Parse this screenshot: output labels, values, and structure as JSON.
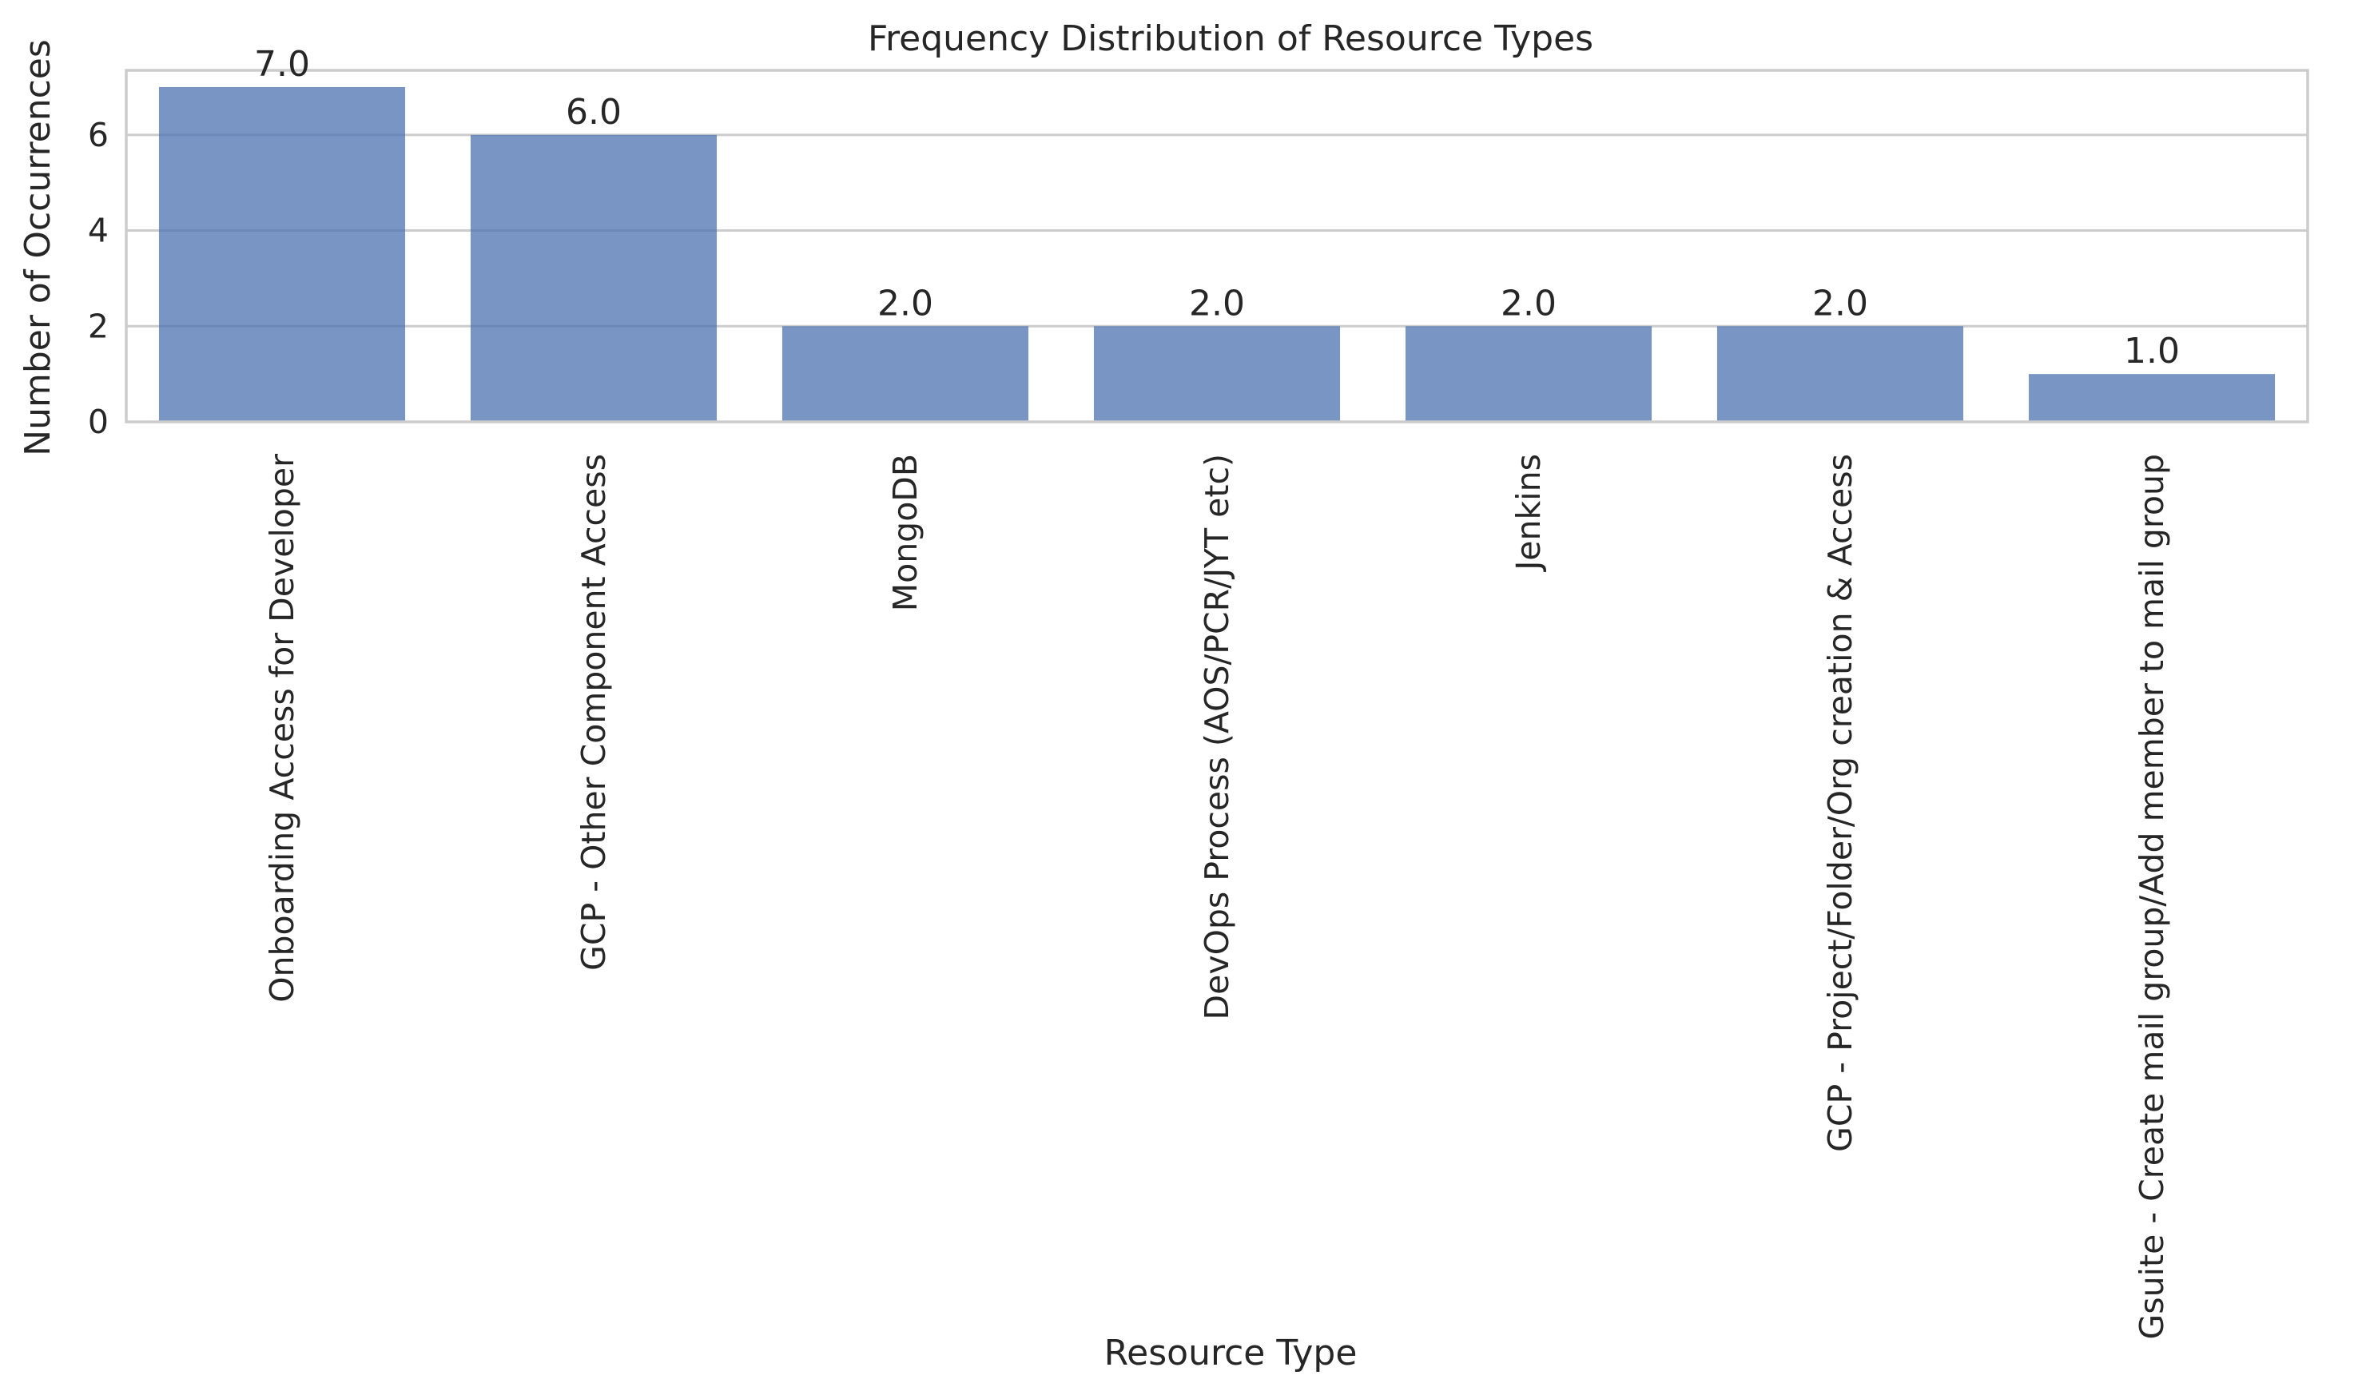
{
  "chart_data": {
    "type": "bar",
    "title": "Frequency Distribution of Resource Types",
    "xlabel": "Resource Type",
    "ylabel": "Number of Occurrences",
    "categories": [
      "Onboarding Access for Developer",
      "GCP - Other Component Access",
      "MongoDB",
      "DevOps Process (AOS/PCR/JYT etc)",
      "Jenkins",
      "GCP - Project/Folder/Org creation & Access",
      "Gsuite - Create mail group/Add member to mail group"
    ],
    "values": [
      7,
      6,
      2,
      2,
      2,
      2,
      1
    ],
    "data_labels": [
      "7.0",
      "6.0",
      "2.0",
      "2.0",
      "2.0",
      "2.0",
      "1.0"
    ],
    "ylim": [
      0,
      7.35
    ],
    "yticks": [
      0,
      2,
      4,
      6
    ],
    "ytick_labels": [
      "0",
      "2",
      "4",
      "6"
    ],
    "grid": "horizontal",
    "colors": {
      "bar": "#4c72b0",
      "bar_opacity": 0.75,
      "grid": "#cccccc",
      "text": "#262626"
    }
  }
}
